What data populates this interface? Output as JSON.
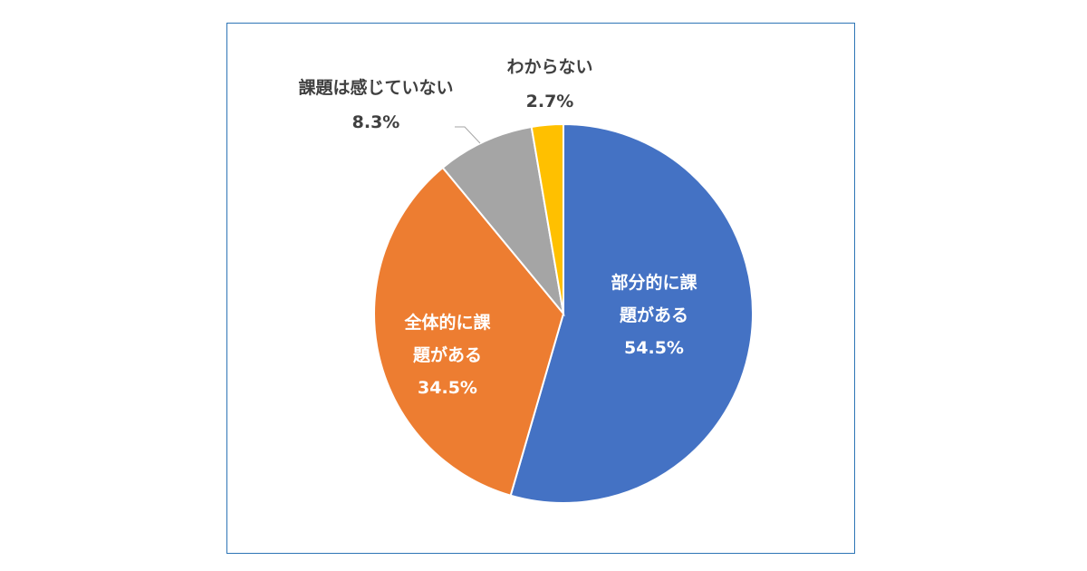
{
  "chart_data": {
    "type": "pie",
    "start_angle_deg": 0,
    "direction": "clockwise",
    "slices": [
      {
        "label_lines": [
          "部分的に課",
          "題がある"
        ],
        "value": 54.5,
        "value_label": "54.5%",
        "color": "#4472C4",
        "label_position": "inside"
      },
      {
        "label_lines": [
          "全体的に課",
          "題がある"
        ],
        "value": 34.5,
        "value_label": "34.5%",
        "color": "#ED7D31",
        "label_position": "inside"
      },
      {
        "label_lines": [
          "課題は感じていない"
        ],
        "value": 8.3,
        "value_label": "8.3%",
        "color": "#A5A5A5",
        "label_position": "outside"
      },
      {
        "label_lines": [
          "わからない"
        ],
        "value": 2.7,
        "value_label": "2.7%",
        "color": "#FFC000",
        "label_position": "outside"
      }
    ],
    "legend": "none"
  }
}
